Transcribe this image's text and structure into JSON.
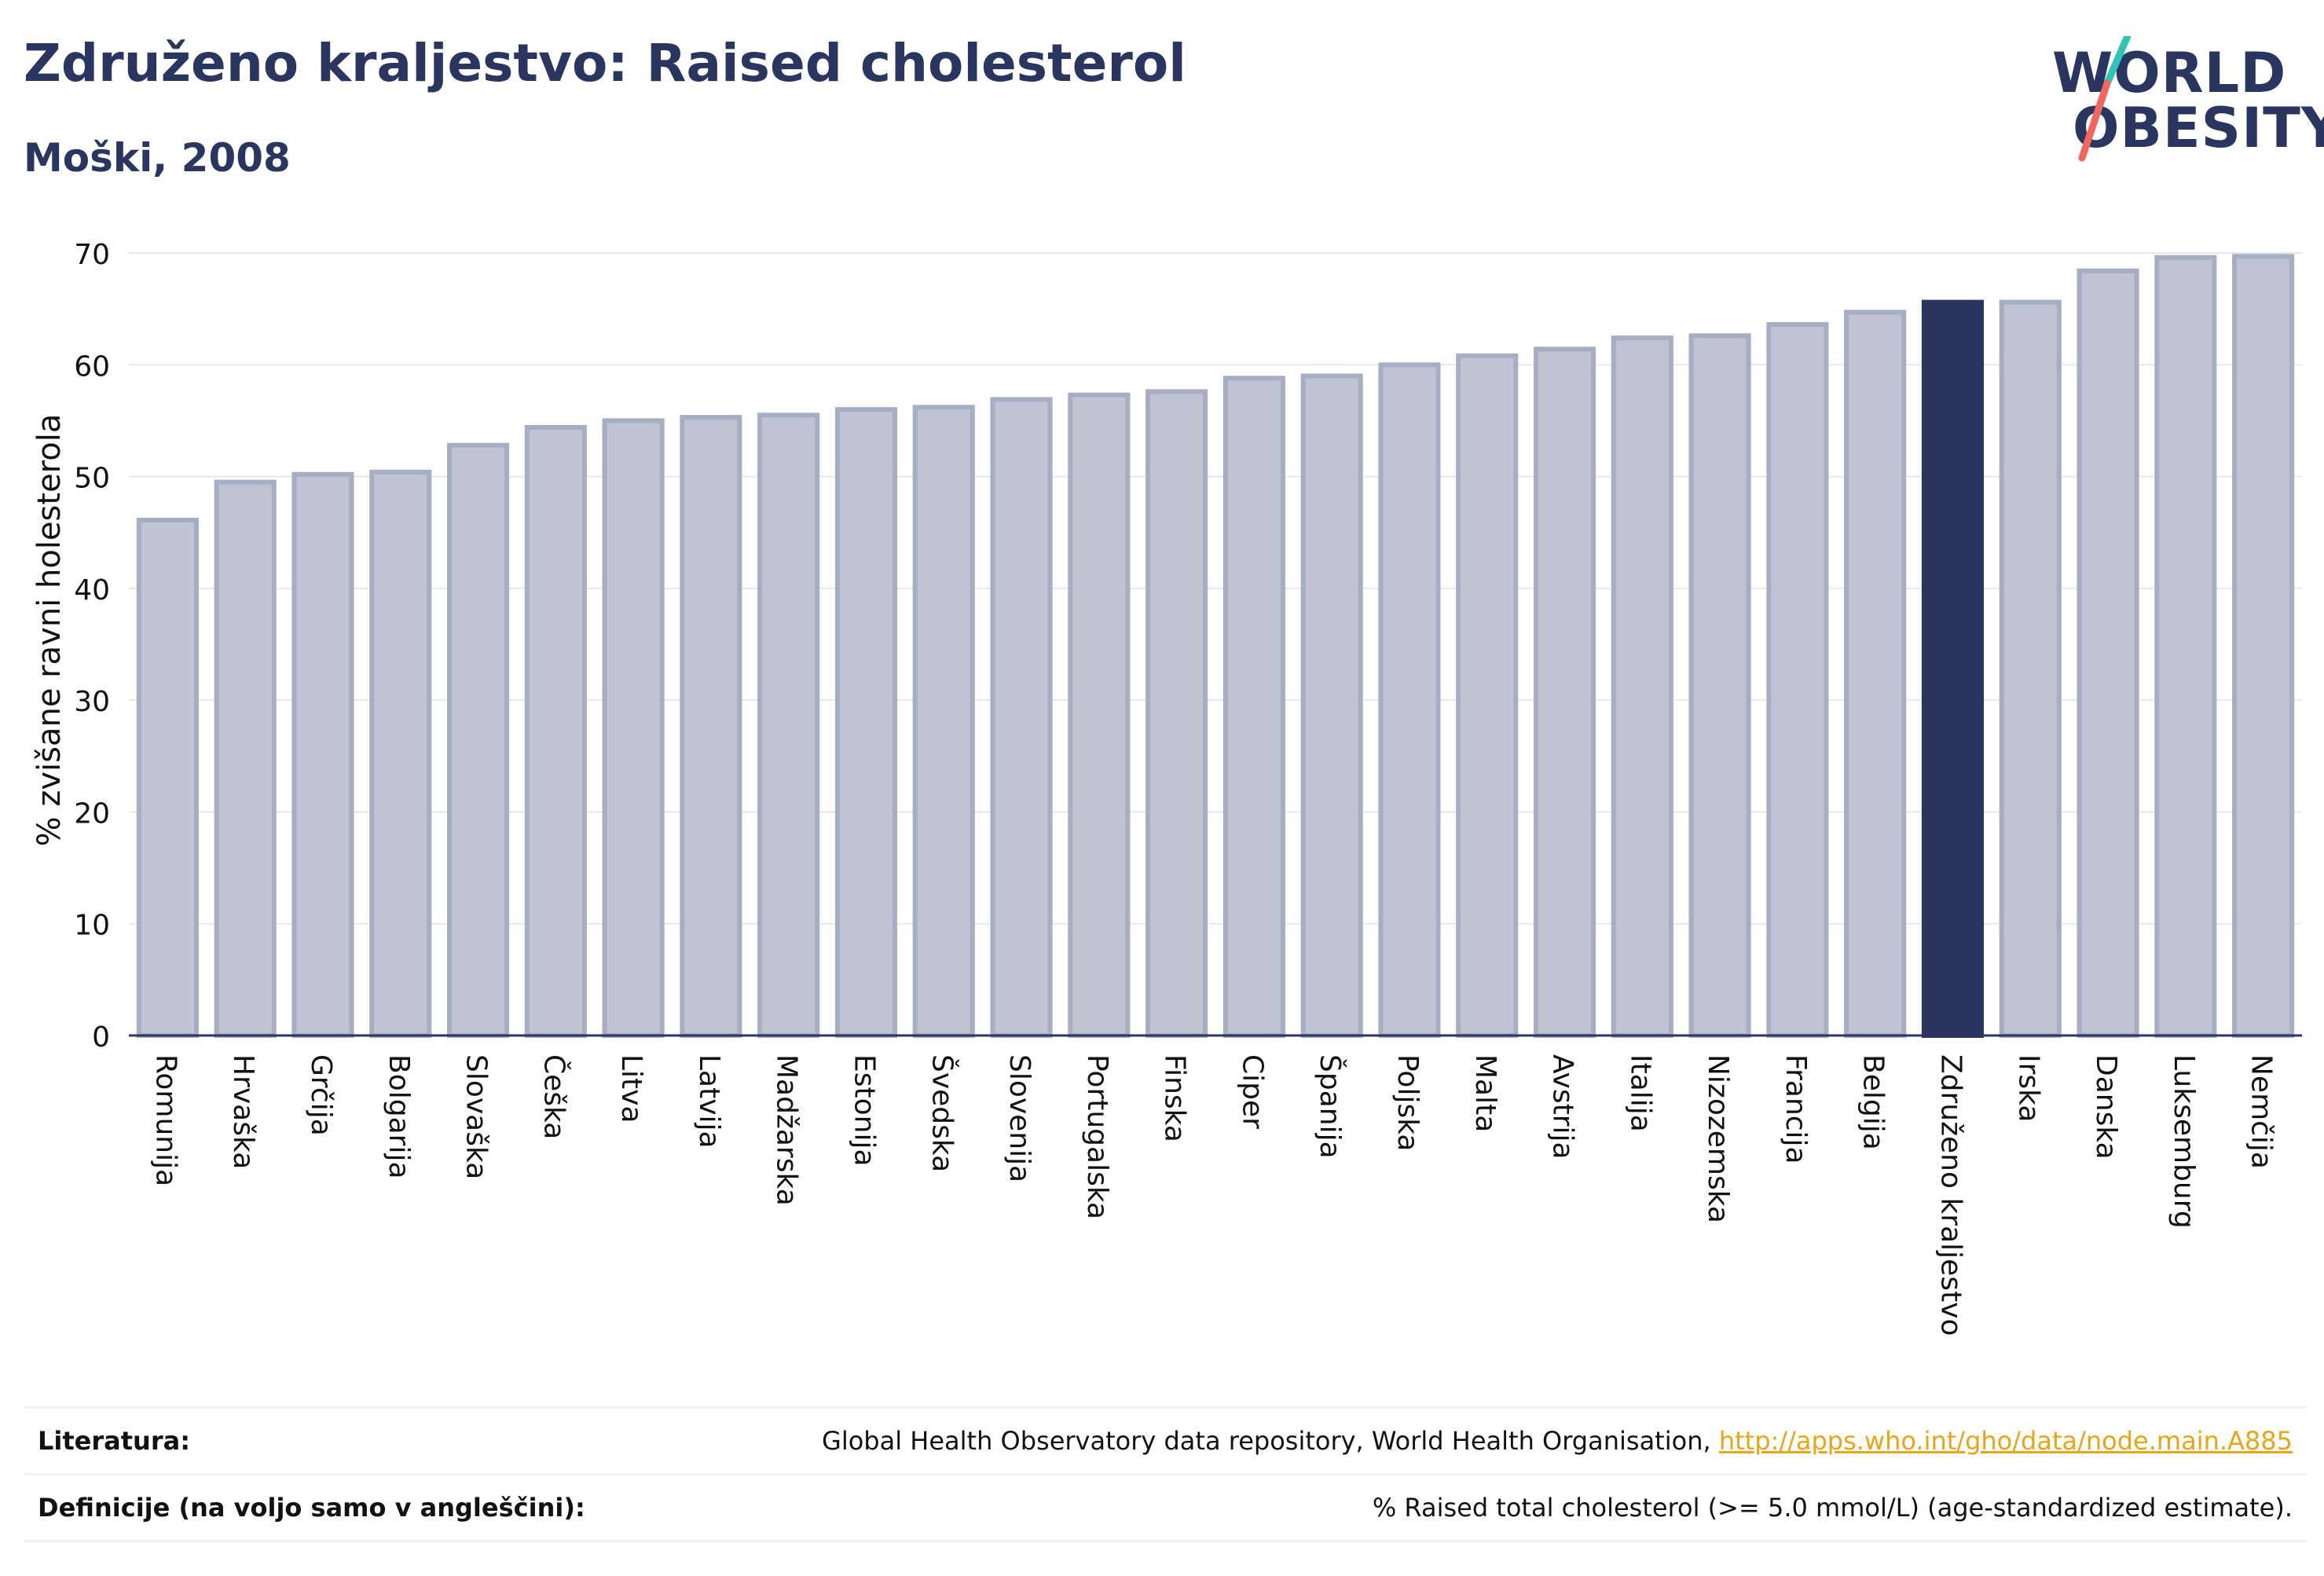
{
  "header": {
    "title": "Združeno kraljestvo: Raised cholesterol",
    "subtitle": "Moški, 2008"
  },
  "logo": {
    "line1": "WORLD",
    "line2": "OBESITY",
    "slash_colors": [
      "#2ec4b6",
      "#f2665f"
    ]
  },
  "colors": {
    "bar_fill": "#c0c4d2",
    "bar_stroke": "#a7adc2",
    "highlight": "#2a3560",
    "grid": "#e6e8ee",
    "text": "#2a3560"
  },
  "chart_data": {
    "type": "bar",
    "title": "Združeno kraljestvo: Raised cholesterol",
    "subtitle": "Moški, 2008",
    "xlabel": "",
    "ylabel": "% zvišane ravni holesterola",
    "ylim": [
      0,
      70
    ],
    "yticks": [
      0,
      10,
      20,
      30,
      40,
      50,
      60,
      70
    ],
    "grid": true,
    "highlight": "Združeno kraljestvo",
    "categories": [
      "Romunija",
      "Hrvaška",
      "Grčija",
      "Bolgarija",
      "Slovaška",
      "Češka",
      "Litva",
      "Latvija",
      "Madžarska",
      "Estonija",
      "Švedska",
      "Slovenija",
      "Portugalska",
      "Finska",
      "Ciper",
      "Španija",
      "Poljska",
      "Malta",
      "Avstrija",
      "Italija",
      "Nizozemska",
      "Francija",
      "Belgija",
      "Združeno kraljestvo",
      "Irska",
      "Danska",
      "Luksemburg",
      "Nemčija"
    ],
    "values": [
      46.1,
      49.5,
      50.2,
      50.4,
      52.8,
      54.4,
      55.0,
      55.3,
      55.5,
      56.0,
      56.2,
      56.9,
      57.3,
      57.6,
      58.8,
      59.0,
      60.0,
      60.8,
      61.4,
      62.4,
      62.6,
      63.6,
      64.7,
      65.6,
      65.6,
      68.4,
      69.6,
      69.7
    ]
  },
  "references": {
    "literature_label": "Literatura:",
    "literature_text": "Global Health Observatory data repository, World Health Organisation, ",
    "literature_link": "http://apps.who.int/gho/data/node.main.A885",
    "definitions_label": "Definicije (na voljo samo v angleščini):",
    "definitions_text": "% Raised total cholesterol (>= 5.0 mmol/L) (age-standardized estimate)."
  }
}
